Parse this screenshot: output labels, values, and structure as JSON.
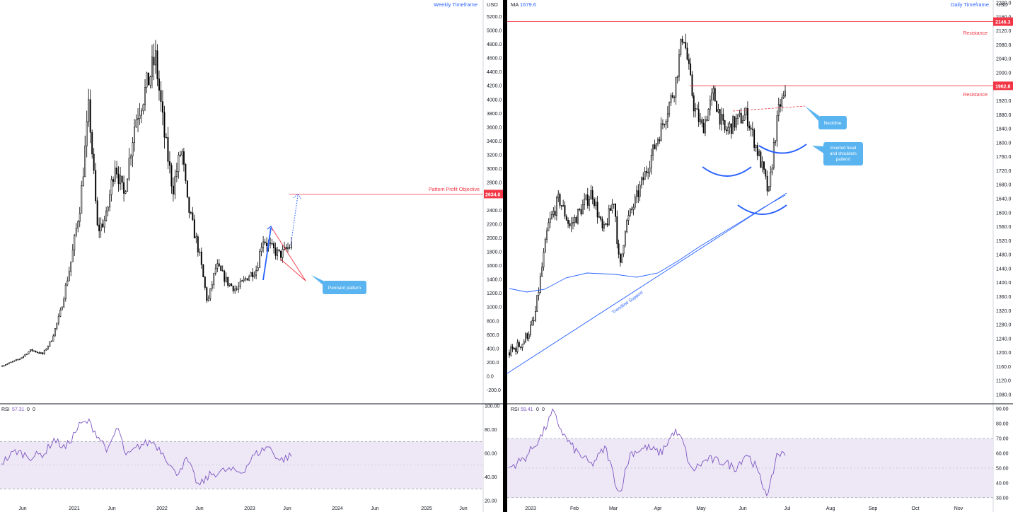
{
  "left": {
    "timeframe_label": "Weekly Timeframe",
    "currency": "USD",
    "y_ticks": [
      -200,
      0,
      200,
      400,
      600,
      800,
      1000,
      1200,
      1400,
      1600,
      1800,
      2000,
      2200,
      2400,
      2600,
      2800,
      3000,
      3200,
      3400,
      3600,
      3800,
      4000,
      4200,
      4400,
      4600,
      4800,
      5000,
      5200
    ],
    "y_ticks_text": [
      "-200.0",
      "0.0",
      "200.0",
      "400.0",
      "600.0",
      "800.0",
      "1000.0",
      "1200.0",
      "1400.0",
      "1600.0",
      "1800.0",
      "2000.0",
      "2200.0",
      "2400.0",
      "2600.0",
      "2800.0",
      "3000.0",
      "3200.0",
      "3400.0",
      "3600.0",
      "3800.0",
      "4000.0",
      "4200.0",
      "4400.0",
      "4600.0",
      "4800.0",
      "5000.0",
      "5200.0"
    ],
    "x_ticks": [
      "Jun",
      "2021",
      "Jun",
      "2022",
      "Jun",
      "2023",
      "Jun",
      "2024",
      "Jun",
      "2025",
      "Jun"
    ],
    "profit_objective": {
      "label": "Pattern Profit Objective",
      "value": 2634,
      "value_text": "2634.0"
    },
    "callout": "Pennant pattern",
    "rsi": {
      "label": "RSI",
      "value_text": "57.31",
      "extra1": "0",
      "extra2": "0",
      "ticks_text": [
        "100.00",
        "80.00",
        "60.00",
        "40.00",
        "20.00"
      ]
    }
  },
  "right": {
    "timeframe_label": "Daily Timeframe",
    "currency": "USD",
    "ma_label": "MA",
    "ma_value": "1679.6",
    "y_ticks": [
      1080,
      1120,
      1160,
      1200,
      1240,
      1280,
      1320,
      1360,
      1400,
      1440,
      1480,
      1520,
      1560,
      1600,
      1640,
      1680,
      1720,
      1760,
      1800,
      1840,
      1880,
      1920,
      1960,
      2000,
      2040,
      2080,
      2120,
      2160,
      2200
    ],
    "y_ticks_text": [
      "1080.0",
      "1120.0",
      "1160.0",
      "1200.0",
      "1240.0",
      "1280.0",
      "1320.0",
      "1360.0",
      "1400.0",
      "1440.0",
      "1480.0",
      "1520.0",
      "1560.0",
      "1600.0",
      "1640.0",
      "1680.0",
      "1720.0",
      "1760.0",
      "1800.0",
      "1840.0",
      "1880.0",
      "1920.0",
      "1960.0",
      "2000.0",
      "2040.0",
      "2080.0",
      "2120.0",
      "2160.0",
      "2200.0"
    ],
    "x_ticks": [
      "2023",
      "Feb",
      "Mar",
      "Apr",
      "May",
      "Jun",
      "Jul",
      "Aug",
      "Sep",
      "Oct",
      "Nov"
    ],
    "resistance_upper": {
      "label": "Resistance",
      "value": 2146.3,
      "value_text": "2146.3"
    },
    "resistance_lower": {
      "label": "Resistance",
      "value": 1962.8,
      "value_text": "1962.8"
    },
    "neckline_label": "Neckline",
    "ihs_label": "Inverted head and shoulders pattern!",
    "trendline_label": "Trendline Support",
    "rsi": {
      "label": "RSI",
      "value_text": "59.41",
      "extra1": "0",
      "extra2": "0",
      "ticks_text": [
        "90.00",
        "80.00",
        "70.00",
        "60.00",
        "50.00",
        "40.00",
        "30.00"
      ]
    }
  },
  "colors": {
    "candle": "#000000",
    "grid_text": "#131722",
    "resistance": "#f23645",
    "accent_blue": "#2962ff",
    "callout_fill": "#5ab4f0",
    "rsi_line": "#7e57c2",
    "rsi_band": "#ede7f6"
  },
  "chart_data": [
    {
      "type": "line",
      "title": "Weekly Timeframe",
      "ylabel": "USD",
      "ylim": [
        -250,
        5350
      ],
      "x": [
        "2020-05",
        "2020-08",
        "2020-11",
        "2021-01",
        "2021-03",
        "2021-05",
        "2021-08",
        "2021-11",
        "2022-01",
        "2022-04",
        "2022-06",
        "2022-09",
        "2022-12",
        "2023-02",
        "2023-04",
        "2023-06",
        "2023-07"
      ],
      "series": [
        {
          "name": "",
          "values": [
            200,
            380,
            450,
            800,
            1750,
            2600,
            3200,
            4350,
            3000,
            2800,
            1100,
            1400,
            1200,
            1600,
            1900,
            1830,
            1950
          ]
        }
      ],
      "annotations": [
        "Pattern Profit Objective 2634.0",
        "Pennant pattern"
      ],
      "rsi": {
        "ylim": [
          20,
          100
        ],
        "last": 57.31
      }
    },
    {
      "type": "line",
      "title": "Daily Timeframe",
      "ylabel": "USD",
      "ylim": [
        1060,
        2220
      ],
      "x": [
        "2023-01-01",
        "2023-01-15",
        "2023-02-01",
        "2023-02-15",
        "2023-03-01",
        "2023-03-10",
        "2023-03-20",
        "2023-04-01",
        "2023-04-15",
        "2023-05-01",
        "2023-05-15",
        "2023-06-01",
        "2023-06-10",
        "2023-06-15",
        "2023-06-22",
        "2023-07-01"
      ],
      "series": [
        {
          "name": "",
          "values": [
            1200,
            1260,
            1640,
            1560,
            1600,
            1430,
            1780,
            1900,
            2100,
            1870,
            1800,
            1870,
            1740,
            1640,
            1880,
            1930
          ]
        }
      ],
      "ma": 1679.6,
      "levels": [
        2146.3,
        1962.8
      ],
      "annotations": [
        "Resistance",
        "Resistance",
        "Neckline",
        "Inverted head and shoulders pattern!",
        "Trendline Support"
      ],
      "rsi": {
        "ylim": [
          28,
          92
        ],
        "last": 59.41
      }
    }
  ]
}
